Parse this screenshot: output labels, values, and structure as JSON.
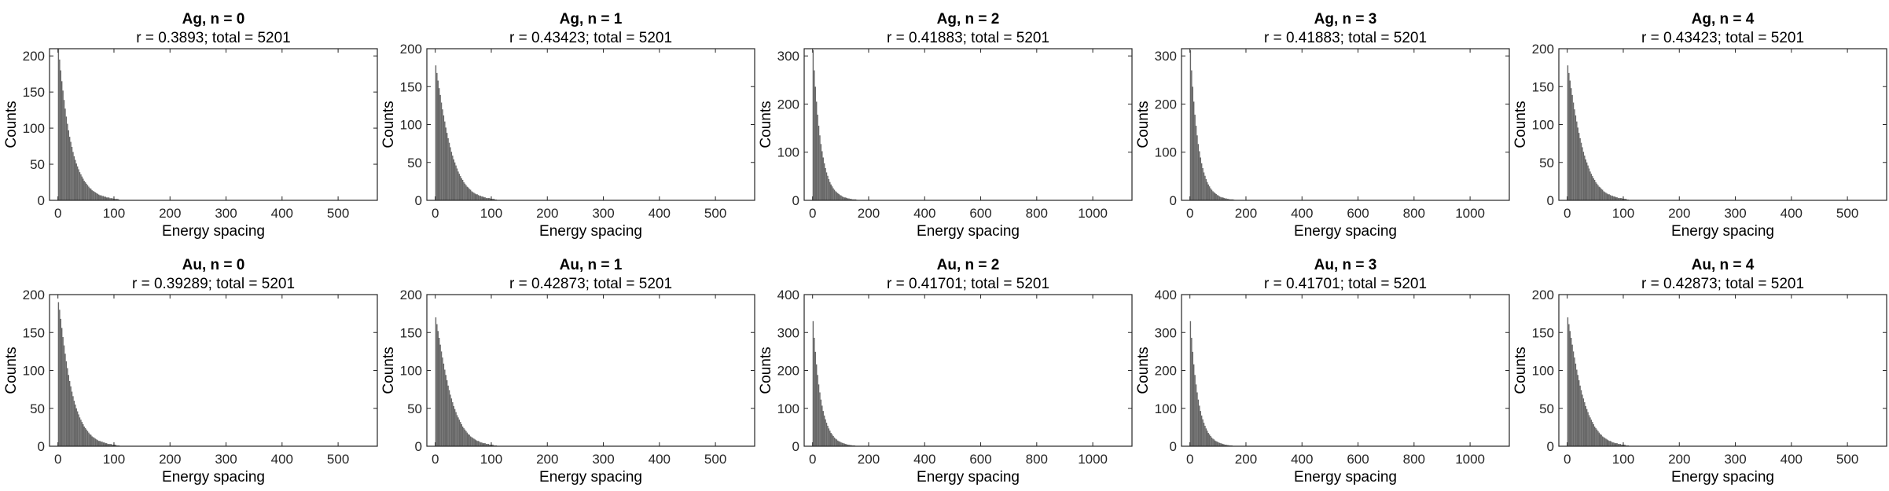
{
  "chart_data": [
    {
      "type": "bar",
      "title": "Ag, n = 0",
      "subtitle": "r = 0.3893; total = 5201",
      "xlabel": "Energy spacing",
      "ylabel": "Counts",
      "xlim": [
        -15,
        570
      ],
      "ylim": [
        0,
        210
      ],
      "xticks": [
        0,
        100,
        200,
        300,
        400,
        500
      ],
      "yticks": [
        0,
        50,
        100,
        150,
        200
      ],
      "bin_width": 2,
      "x": [
        1,
        3,
        5,
        7,
        9,
        11,
        13,
        15,
        17,
        19,
        21,
        23,
        25,
        27,
        29,
        31,
        33,
        35,
        37,
        39,
        41,
        43,
        45,
        47,
        49,
        51,
        53,
        55,
        57,
        59,
        61,
        63,
        65,
        67,
        69,
        71,
        73,
        75,
        77,
        79,
        81,
        83,
        85,
        87,
        89,
        91,
        93,
        95,
        97,
        99,
        101,
        103,
        105,
        107,
        109
      ],
      "values": [
        210,
        195,
        180,
        165,
        152,
        139,
        127,
        116,
        106,
        97,
        88,
        81,
        74,
        67,
        61,
        56,
        51,
        47,
        43,
        39,
        36,
        33,
        30,
        27,
        25,
        23,
        21,
        19,
        17,
        16,
        14,
        13,
        12,
        11,
        10,
        9,
        8,
        7,
        7,
        6,
        6,
        5,
        5,
        4,
        4,
        4,
        3,
        3,
        3,
        2,
        2,
        2,
        2,
        2,
        1
      ]
    },
    {
      "type": "bar",
      "title": "Ag, n = 1",
      "subtitle": "r = 0.43423; total = 5201",
      "xlabel": "Energy spacing",
      "ylabel": "Counts",
      "xlim": [
        -15,
        570
      ],
      "ylim": [
        0,
        200
      ],
      "xticks": [
        0,
        100,
        200,
        300,
        400,
        500
      ],
      "yticks": [
        0,
        50,
        100,
        150,
        200
      ],
      "bin_width": 2,
      "x": [
        1,
        3,
        5,
        7,
        9,
        11,
        13,
        15,
        17,
        19,
        21,
        23,
        25,
        27,
        29,
        31,
        33,
        35,
        37,
        39,
        41,
        43,
        45,
        47,
        49,
        51,
        53,
        55,
        57,
        59,
        61,
        63,
        65,
        67,
        69,
        71,
        73,
        75,
        77,
        79,
        81,
        83,
        85,
        87,
        89,
        91,
        93,
        95,
        97,
        99,
        101,
        103,
        105,
        107,
        109
      ],
      "values": [
        178,
        168,
        158,
        148,
        139,
        129,
        120,
        112,
        104,
        96,
        89,
        82,
        76,
        70,
        64,
        59,
        54,
        50,
        46,
        42,
        38,
        35,
        32,
        29,
        27,
        24,
        22,
        20,
        18,
        17,
        15,
        14,
        12,
        11,
        10,
        9,
        8,
        8,
        7,
        6,
        6,
        5,
        5,
        4,
        4,
        3,
        3,
        3,
        3,
        2,
        2,
        2,
        2,
        1,
        1
      ]
    },
    {
      "type": "bar",
      "title": "Ag, n = 2",
      "subtitle": "r = 0.41883; total = 5201",
      "xlabel": "Energy spacing",
      "ylabel": "Counts",
      "xlim": [
        -30,
        1140
      ],
      "ylim": [
        0,
        315
      ],
      "xticks": [
        0,
        200,
        400,
        600,
        800,
        1000
      ],
      "yticks": [
        0,
        100,
        200,
        300
      ],
      "bin_width": 4,
      "x": [
        2,
        6,
        10,
        14,
        18,
        22,
        26,
        30,
        34,
        38,
        42,
        46,
        50,
        54,
        58,
        62,
        66,
        70,
        74,
        78,
        82,
        86,
        90,
        94,
        98,
        102,
        106,
        110,
        114,
        118,
        122,
        126,
        130,
        134,
        138,
        142,
        146,
        150,
        154,
        158
      ],
      "values": [
        312,
        270,
        236,
        205,
        178,
        155,
        135,
        117,
        102,
        89,
        77,
        67,
        58,
        51,
        44,
        38,
        33,
        29,
        25,
        22,
        19,
        17,
        15,
        13,
        11,
        10,
        8,
        7,
        6,
        6,
        5,
        4,
        4,
        3,
        3,
        2,
        2,
        2,
        2,
        1
      ]
    },
    {
      "type": "bar",
      "title": "Ag, n = 3",
      "subtitle": "r = 0.41883; total = 5201",
      "xlabel": "Energy spacing",
      "ylabel": "Counts",
      "xlim": [
        -30,
        1140
      ],
      "ylim": [
        0,
        315
      ],
      "xticks": [
        0,
        200,
        400,
        600,
        800,
        1000
      ],
      "yticks": [
        0,
        100,
        200,
        300
      ],
      "bin_width": 4,
      "x": [
        2,
        6,
        10,
        14,
        18,
        22,
        26,
        30,
        34,
        38,
        42,
        46,
        50,
        54,
        58,
        62,
        66,
        70,
        74,
        78,
        82,
        86,
        90,
        94,
        98,
        102,
        106,
        110,
        114,
        118,
        122,
        126,
        130,
        134,
        138,
        142,
        146,
        150,
        154,
        158
      ],
      "values": [
        312,
        270,
        236,
        205,
        178,
        155,
        135,
        117,
        102,
        89,
        77,
        67,
        58,
        51,
        44,
        38,
        33,
        29,
        25,
        22,
        19,
        17,
        15,
        13,
        11,
        10,
        8,
        7,
        6,
        6,
        5,
        4,
        4,
        3,
        3,
        2,
        2,
        2,
        2,
        1
      ]
    },
    {
      "type": "bar",
      "title": "Ag, n = 4",
      "subtitle": "r = 0.43423; total = 5201",
      "xlabel": "Energy spacing",
      "ylabel": "Counts",
      "xlim": [
        -15,
        570
      ],
      "ylim": [
        0,
        200
      ],
      "xticks": [
        0,
        100,
        200,
        300,
        400,
        500
      ],
      "yticks": [
        0,
        50,
        100,
        150,
        200
      ],
      "bin_width": 2,
      "x": [
        1,
        3,
        5,
        7,
        9,
        11,
        13,
        15,
        17,
        19,
        21,
        23,
        25,
        27,
        29,
        31,
        33,
        35,
        37,
        39,
        41,
        43,
        45,
        47,
        49,
        51,
        53,
        55,
        57,
        59,
        61,
        63,
        65,
        67,
        69,
        71,
        73,
        75,
        77,
        79,
        81,
        83,
        85,
        87,
        89,
        91,
        93,
        95,
        97,
        99,
        101,
        103,
        105,
        107,
        109
      ],
      "values": [
        178,
        168,
        158,
        148,
        139,
        129,
        120,
        112,
        104,
        96,
        89,
        82,
        76,
        70,
        64,
        59,
        54,
        50,
        46,
        42,
        38,
        35,
        32,
        29,
        27,
        24,
        22,
        20,
        18,
        17,
        15,
        14,
        12,
        11,
        10,
        9,
        8,
        8,
        7,
        6,
        6,
        5,
        5,
        4,
        4,
        3,
        3,
        3,
        3,
        2,
        2,
        2,
        2,
        1,
        1
      ]
    },
    {
      "type": "bar",
      "title": "Au, n = 0",
      "subtitle": "r = 0.39289; total = 5201",
      "xlabel": "Energy spacing",
      "ylabel": "Counts",
      "xlim": [
        -15,
        570
      ],
      "ylim": [
        0,
        200
      ],
      "xticks": [
        0,
        100,
        200,
        300,
        400,
        500
      ],
      "yticks": [
        0,
        50,
        100,
        150,
        200
      ],
      "bin_width": 2,
      "x": [
        1,
        3,
        5,
        7,
        9,
        11,
        13,
        15,
        17,
        19,
        21,
        23,
        25,
        27,
        29,
        31,
        33,
        35,
        37,
        39,
        41,
        43,
        45,
        47,
        49,
        51,
        53,
        55,
        57,
        59,
        61,
        63,
        65,
        67,
        69,
        71,
        73,
        75,
        77,
        79,
        81,
        83,
        85,
        87,
        89,
        91,
        93,
        95,
        97,
        99,
        101,
        103,
        105,
        107,
        109
      ],
      "values": [
        190,
        180,
        168,
        156,
        144,
        133,
        122,
        112,
        103,
        94,
        86,
        79,
        72,
        66,
        60,
        55,
        50,
        46,
        42,
        38,
        35,
        32,
        29,
        26,
        24,
        22,
        20,
        18,
        16,
        15,
        13,
        12,
        11,
        10,
        9,
        8,
        7,
        7,
        6,
        6,
        5,
        5,
        4,
        4,
        3,
        3,
        3,
        3,
        2,
        2,
        2,
        2,
        1,
        1,
        1
      ]
    },
    {
      "type": "bar",
      "title": "Au, n = 1",
      "subtitle": "r = 0.42873; total = 5201",
      "xlabel": "Energy spacing",
      "ylabel": "Counts",
      "xlim": [
        -15,
        570
      ],
      "ylim": [
        0,
        200
      ],
      "xticks": [
        0,
        100,
        200,
        300,
        400,
        500
      ],
      "yticks": [
        0,
        50,
        100,
        150,
        200
      ],
      "bin_width": 2,
      "x": [
        1,
        3,
        5,
        7,
        9,
        11,
        13,
        15,
        17,
        19,
        21,
        23,
        25,
        27,
        29,
        31,
        33,
        35,
        37,
        39,
        41,
        43,
        45,
        47,
        49,
        51,
        53,
        55,
        57,
        59,
        61,
        63,
        65,
        67,
        69,
        71,
        73,
        75,
        77,
        79,
        81,
        83,
        85,
        87,
        89,
        91,
        93,
        95,
        97,
        99,
        101,
        103,
        105,
        107,
        109
      ],
      "values": [
        170,
        161,
        152,
        143,
        134,
        125,
        117,
        109,
        101,
        94,
        87,
        80,
        74,
        68,
        63,
        58,
        53,
        49,
        45,
        41,
        38,
        35,
        32,
        29,
        26,
        24,
        22,
        20,
        18,
        16,
        15,
        13,
        12,
        11,
        10,
        9,
        8,
        7,
        7,
        6,
        5,
        5,
        4,
        4,
        4,
        3,
        3,
        3,
        2,
        2,
        2,
        2,
        1,
        1,
        1
      ]
    },
    {
      "type": "bar",
      "title": "Au, n = 2",
      "subtitle": "r = 0.41701; total = 5201",
      "xlabel": "Energy spacing",
      "ylabel": "Counts",
      "xlim": [
        -30,
        1140
      ],
      "ylim": [
        0,
        400
      ],
      "xticks": [
        0,
        200,
        400,
        600,
        800,
        1000
      ],
      "yticks": [
        0,
        100,
        200,
        300,
        400
      ],
      "bin_width": 4,
      "x": [
        2,
        6,
        10,
        14,
        18,
        22,
        26,
        30,
        34,
        38,
        42,
        46,
        50,
        54,
        58,
        62,
        66,
        70,
        74,
        78,
        82,
        86,
        90,
        94,
        98,
        102,
        106,
        110,
        114,
        118,
        122,
        126,
        130,
        134,
        138,
        142,
        146,
        150,
        154,
        158
      ],
      "values": [
        330,
        286,
        249,
        216,
        188,
        163,
        142,
        123,
        107,
        93,
        81,
        71,
        62,
        54,
        47,
        41,
        35,
        31,
        27,
        23,
        20,
        18,
        15,
        13,
        12,
        10,
        9,
        8,
        7,
        6,
        5,
        4,
        4,
        3,
        3,
        2,
        2,
        2,
        1,
        1
      ]
    },
    {
      "type": "bar",
      "title": "Au, n = 3",
      "subtitle": "r = 0.41701; total = 5201",
      "xlabel": "Energy spacing",
      "ylabel": "Counts",
      "xlim": [
        -30,
        1140
      ],
      "ylim": [
        0,
        400
      ],
      "xticks": [
        0,
        200,
        400,
        600,
        800,
        1000
      ],
      "yticks": [
        0,
        100,
        200,
        300,
        400
      ],
      "bin_width": 4,
      "x": [
        2,
        6,
        10,
        14,
        18,
        22,
        26,
        30,
        34,
        38,
        42,
        46,
        50,
        54,
        58,
        62,
        66,
        70,
        74,
        78,
        82,
        86,
        90,
        94,
        98,
        102,
        106,
        110,
        114,
        118,
        122,
        126,
        130,
        134,
        138,
        142,
        146,
        150,
        154,
        158
      ],
      "values": [
        330,
        286,
        249,
        216,
        188,
        163,
        142,
        123,
        107,
        93,
        81,
        71,
        62,
        54,
        47,
        41,
        35,
        31,
        27,
        23,
        20,
        18,
        15,
        13,
        12,
        10,
        9,
        8,
        7,
        6,
        5,
        4,
        4,
        3,
        3,
        2,
        2,
        2,
        1,
        1
      ]
    },
    {
      "type": "bar",
      "title": "Au, n = 4",
      "subtitle": "r = 0.42873; total = 5201",
      "xlabel": "Energy spacing",
      "ylabel": "Counts",
      "xlim": [
        -15,
        570
      ],
      "ylim": [
        0,
        200
      ],
      "xticks": [
        0,
        100,
        200,
        300,
        400,
        500
      ],
      "yticks": [
        0,
        50,
        100,
        150,
        200
      ],
      "bin_width": 2,
      "x": [
        1,
        3,
        5,
        7,
        9,
        11,
        13,
        15,
        17,
        19,
        21,
        23,
        25,
        27,
        29,
        31,
        33,
        35,
        37,
        39,
        41,
        43,
        45,
        47,
        49,
        51,
        53,
        55,
        57,
        59,
        61,
        63,
        65,
        67,
        69,
        71,
        73,
        75,
        77,
        79,
        81,
        83,
        85,
        87,
        89,
        91,
        93,
        95,
        97,
        99,
        101,
        103,
        105,
        107,
        109
      ],
      "values": [
        170,
        161,
        152,
        143,
        134,
        125,
        117,
        109,
        101,
        94,
        87,
        80,
        74,
        68,
        63,
        58,
        53,
        49,
        45,
        41,
        38,
        35,
        32,
        29,
        26,
        24,
        22,
        20,
        18,
        16,
        15,
        13,
        12,
        11,
        10,
        9,
        8,
        7,
        7,
        6,
        5,
        5,
        4,
        4,
        4,
        3,
        3,
        3,
        2,
        2,
        2,
        2,
        1,
        1,
        1
      ]
    }
  ],
  "colors": {
    "bar_fill": "#666666",
    "axis": "#262626"
  }
}
